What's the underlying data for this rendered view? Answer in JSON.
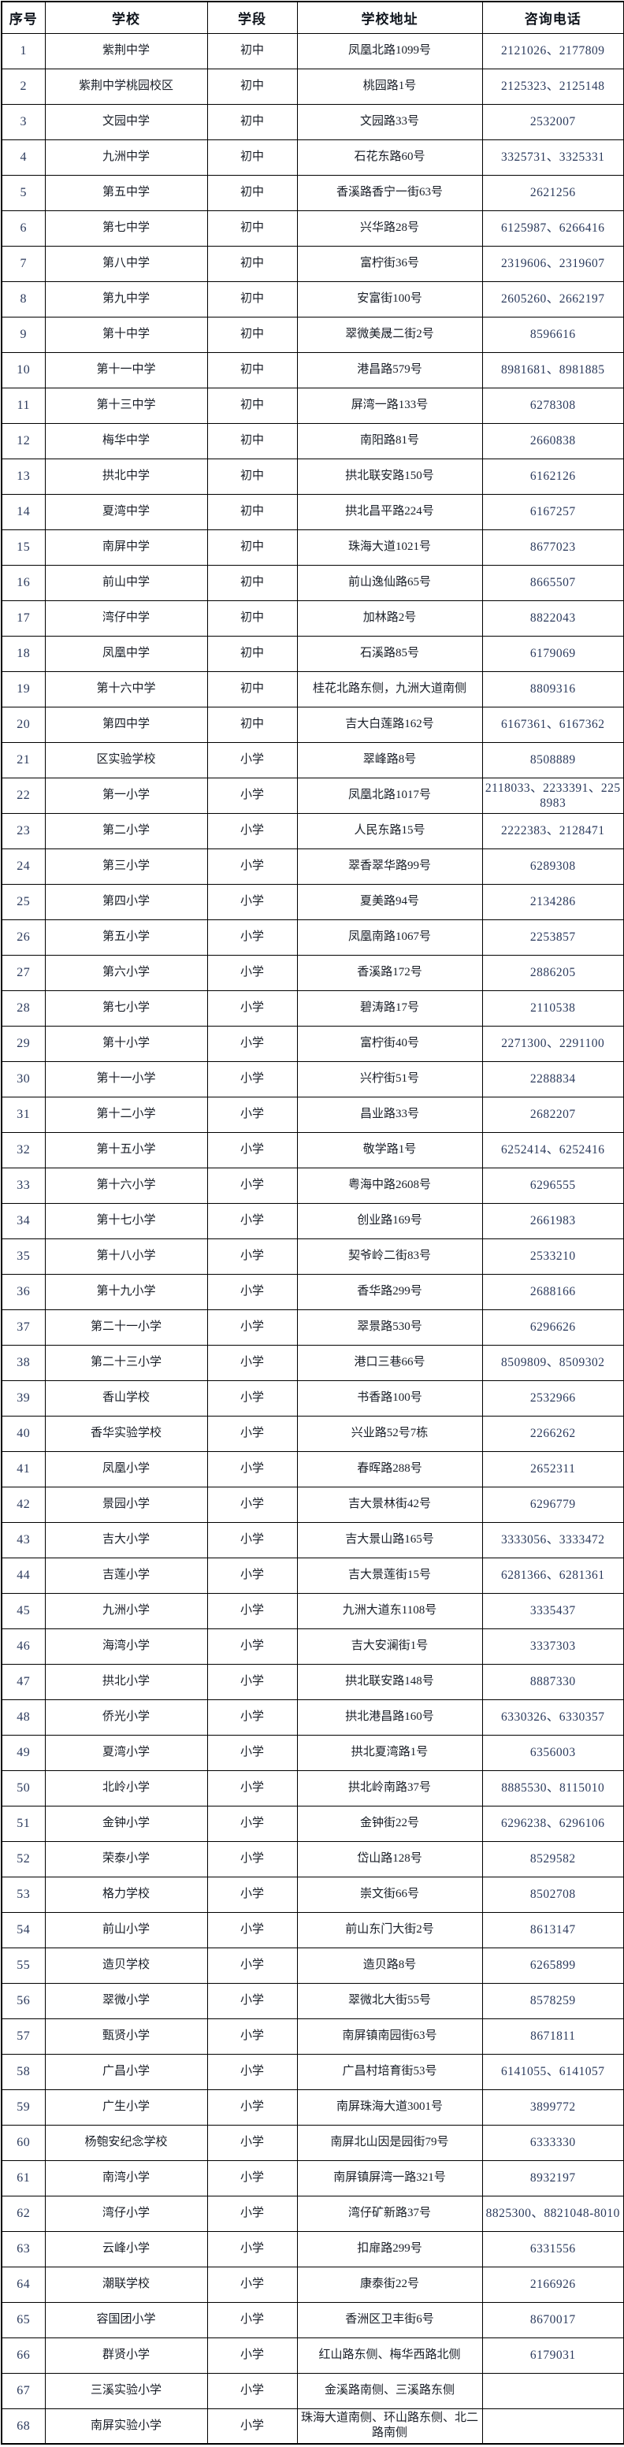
{
  "colors": {
    "border": "#000000",
    "background": "#ffffff",
    "header_text": "#10151d",
    "body_text": "#191e27",
    "digit_text": "#2b3a5c"
  },
  "table": {
    "columns": [
      "序号",
      "学校",
      "学段",
      "学校地址",
      "咨询电话"
    ],
    "rows": [
      [
        "1",
        "紫荆中学",
        "初中",
        "凤凰北路1099号",
        "2121026、2177809"
      ],
      [
        "2",
        "紫荆中学桃园校区",
        "初中",
        "桃园路1号",
        "2125323、2125148"
      ],
      [
        "3",
        "文园中学",
        "初中",
        "文园路33号",
        "2532007"
      ],
      [
        "4",
        "九洲中学",
        "初中",
        "石花东路60号",
        "3325731、3325331"
      ],
      [
        "5",
        "第五中学",
        "初中",
        "香溪路香宁一街63号",
        "2621256"
      ],
      [
        "6",
        "第七中学",
        "初中",
        "兴华路28号",
        "6125987、6266416"
      ],
      [
        "7",
        "第八中学",
        "初中",
        "富柠街36号",
        "2319606、2319607"
      ],
      [
        "8",
        "第九中学",
        "初中",
        "安富街100号",
        "2605260、2662197"
      ],
      [
        "9",
        "第十中学",
        "初中",
        "翠微美晟二街2号",
        "8596616"
      ],
      [
        "10",
        "第十一中学",
        "初中",
        "港昌路579号",
        "8981681、8981885"
      ],
      [
        "11",
        "第十三中学",
        "初中",
        "屏湾一路133号",
        "6278308"
      ],
      [
        "12",
        "梅华中学",
        "初中",
        "南阳路81号",
        "2660838"
      ],
      [
        "13",
        "拱北中学",
        "初中",
        "拱北联安路150号",
        "6162126"
      ],
      [
        "14",
        "夏湾中学",
        "初中",
        "拱北昌平路224号",
        "6167257"
      ],
      [
        "15",
        "南屏中学",
        "初中",
        "珠海大道1021号",
        "8677023"
      ],
      [
        "16",
        "前山中学",
        "初中",
        "前山逸仙路65号",
        "8665507"
      ],
      [
        "17",
        "湾仔中学",
        "初中",
        "加林路2号",
        "8822043"
      ],
      [
        "18",
        "凤凰中学",
        "初中",
        "石溪路85号",
        "6179069"
      ],
      [
        "19",
        "第十六中学",
        "初中",
        "桂花北路东侧，九洲大道南侧",
        "8809316"
      ],
      [
        "20",
        "第四中学",
        "初中",
        "吉大白莲路162号",
        "6167361、6167362"
      ],
      [
        "21",
        "区实验学校",
        "小学",
        "翠峰路8号",
        "8508889"
      ],
      [
        "22",
        "第一小学",
        "小学",
        "凤凰北路1017号",
        "2118033、2233391、2258983"
      ],
      [
        "23",
        "第二小学",
        "小学",
        "人民东路15号",
        "2222383、2128471"
      ],
      [
        "24",
        "第三小学",
        "小学",
        "翠香翠华路99号",
        "6289308"
      ],
      [
        "25",
        "第四小学",
        "小学",
        "夏美路94号",
        "2134286"
      ],
      [
        "26",
        "第五小学",
        "小学",
        "凤凰南路1067号",
        "2253857"
      ],
      [
        "27",
        "第六小学",
        "小学",
        "香溪路172号",
        "2886205"
      ],
      [
        "28",
        "第七小学",
        "小学",
        "碧涛路17号",
        "2110538"
      ],
      [
        "29",
        "第十小学",
        "小学",
        "富柠街40号",
        "2271300、2291100"
      ],
      [
        "30",
        "第十一小学",
        "小学",
        "兴柠街51号",
        "2288834"
      ],
      [
        "31",
        "第十二小学",
        "小学",
        "昌业路33号",
        "2682207"
      ],
      [
        "32",
        "第十五小学",
        "小学",
        "敬学路1号",
        "6252414、6252416"
      ],
      [
        "33",
        "第十六小学",
        "小学",
        "粤海中路2608号",
        "6296555"
      ],
      [
        "34",
        "第十七小学",
        "小学",
        "创业路169号",
        "2661983"
      ],
      [
        "35",
        "第十八小学",
        "小学",
        "契爷岭二街83号",
        "2533210"
      ],
      [
        "36",
        "第十九小学",
        "小学",
        "香华路299号",
        "2688166"
      ],
      [
        "37",
        "第二十一小学",
        "小学",
        "翠景路530号",
        "6296626"
      ],
      [
        "38",
        "第二十三小学",
        "小学",
        "港口三巷66号",
        "8509809、8509302"
      ],
      [
        "39",
        "香山学校",
        "小学",
        "书香路100号",
        "2532966"
      ],
      [
        "40",
        "香华实验学校",
        "小学",
        "兴业路52号7栋",
        "2266262"
      ],
      [
        "41",
        "凤凰小学",
        "小学",
        "春晖路288号",
        "2652311"
      ],
      [
        "42",
        "景园小学",
        "小学",
        "吉大景林街42号",
        "6296779"
      ],
      [
        "43",
        "吉大小学",
        "小学",
        "吉大景山路165号",
        "3333056、3333472"
      ],
      [
        "44",
        "吉莲小学",
        "小学",
        "吉大景莲街15号",
        "6281366、6281361"
      ],
      [
        "45",
        "九洲小学",
        "小学",
        "九洲大道东1108号",
        "3335437"
      ],
      [
        "46",
        "海湾小学",
        "小学",
        "吉大安澜街1号",
        "3337303"
      ],
      [
        "47",
        "拱北小学",
        "小学",
        "拱北联安路148号",
        "8887330"
      ],
      [
        "48",
        "侨光小学",
        "小学",
        "拱北港昌路160号",
        "6330326、6330357"
      ],
      [
        "49",
        "夏湾小学",
        "小学",
        "拱北夏湾路1号",
        "6356003"
      ],
      [
        "50",
        "北岭小学",
        "小学",
        "拱北岭南路37号",
        "8885530、8115010"
      ],
      [
        "51",
        "金钟小学",
        "小学",
        "金钟街22号",
        "6296238、6296106"
      ],
      [
        "52",
        "荣泰小学",
        "小学",
        "岱山路128号",
        "8529582"
      ],
      [
        "53",
        "格力学校",
        "小学",
        "崇文街66号",
        "8502708"
      ],
      [
        "54",
        "前山小学",
        "小学",
        "前山东门大街2号",
        "8613147"
      ],
      [
        "55",
        "造贝学校",
        "小学",
        "造贝路8号",
        "6265899"
      ],
      [
        "56",
        "翠微小学",
        "小学",
        "翠微北大街55号",
        "8578259"
      ],
      [
        "57",
        "甄贤小学",
        "小学",
        "南屏镇南园街63号",
        "8671811"
      ],
      [
        "58",
        "广昌小学",
        "小学",
        "广昌村培育街53号",
        "6141055、6141057"
      ],
      [
        "59",
        "广生小学",
        "小学",
        "南屏珠海大道3001号",
        "3899772"
      ],
      [
        "60",
        "杨匏安纪念学校",
        "小学",
        "南屏北山因是园街79号",
        "6333330"
      ],
      [
        "61",
        "南湾小学",
        "小学",
        "南屏镇屏湾一路321号",
        "8932197"
      ],
      [
        "62",
        "湾仔小学",
        "小学",
        "湾仔矿新路37号",
        "8825300、8821048-8010"
      ],
      [
        "63",
        "云峰小学",
        "小学",
        "扣扉路299号",
        "6331556"
      ],
      [
        "64",
        "潮联学校",
        "小学",
        "康泰街22号",
        "2166926"
      ],
      [
        "65",
        "容国团小学",
        "小学",
        "香洲区卫丰街6号",
        "8670017"
      ],
      [
        "66",
        "群贤小学",
        "小学",
        "红山路东侧、梅华西路北侧",
        "6179031"
      ],
      [
        "67",
        "三溪实验小学",
        "小学",
        "金溪路南侧、三溪路东侧",
        ""
      ],
      [
        "68",
        "南屏实验小学",
        "小学",
        "珠海大道南侧、环山路东侧、北二路南侧",
        ""
      ]
    ]
  }
}
